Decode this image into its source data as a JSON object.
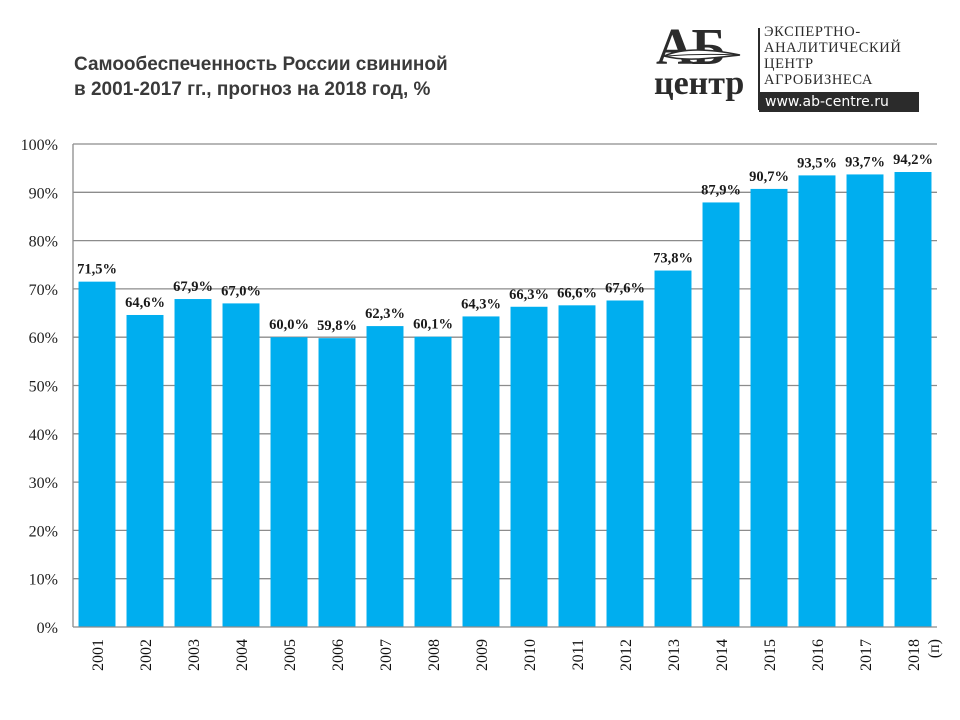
{
  "header": {
    "title_line1": "Самообеспеченность России свининой",
    "title_line2": "в 2001-2017 гг., прогноз на 2018 год, %"
  },
  "logo": {
    "mark_top": "АБ",
    "mark_bottom": "центр",
    "text_lines": [
      "ЭКСПЕРТНО-",
      "АНАЛИТИЧЕСКИЙ",
      "ЦЕНТР",
      "АГРОБИЗНЕСА"
    ],
    "url": "www.ab-centre.ru"
  },
  "colors": {
    "bar": "#00AEEF",
    "grid": "#8c8c8c",
    "title": "#3a3a3a"
  },
  "chart_data": {
    "type": "bar",
    "title": "Самообеспеченность России свининой в 2001-2017 гг., прогноз на 2018 год, %",
    "xlabel": "",
    "ylabel": "",
    "categories": [
      "2001",
      "2002",
      "2003",
      "2004",
      "2005",
      "2006",
      "2007",
      "2008",
      "2009",
      "2010",
      "2011",
      "2012",
      "2013",
      "2014",
      "2015",
      "2016",
      "2017",
      "2018"
    ],
    "category_suffix": {
      "2018": "(п)"
    },
    "values": [
      71.5,
      64.6,
      67.9,
      67.0,
      60.0,
      59.8,
      62.3,
      60.1,
      64.3,
      66.3,
      66.6,
      67.6,
      73.8,
      87.9,
      90.7,
      93.5,
      93.7,
      94.2
    ],
    "data_labels": [
      "71,5%",
      "64,6%",
      "67,9%",
      "67,0%",
      "60,0%",
      "59,8%",
      "62,3%",
      "60,1%",
      "64,3%",
      "66,3%",
      "66,6%",
      "67,6%",
      "73,8%",
      "87,9%",
      "90,7%",
      "93,5%",
      "93,7%",
      "94,2%"
    ],
    "ylim": [
      0,
      100
    ],
    "yticks": [
      0,
      10,
      20,
      30,
      40,
      50,
      60,
      70,
      80,
      90,
      100
    ],
    "ytick_labels": [
      "0%",
      "10%",
      "20%",
      "30%",
      "40%",
      "50%",
      "60%",
      "70%",
      "80%",
      "90%",
      "100%"
    ],
    "grid": true,
    "legend": "none",
    "x_tick_rotation": "vertical"
  }
}
